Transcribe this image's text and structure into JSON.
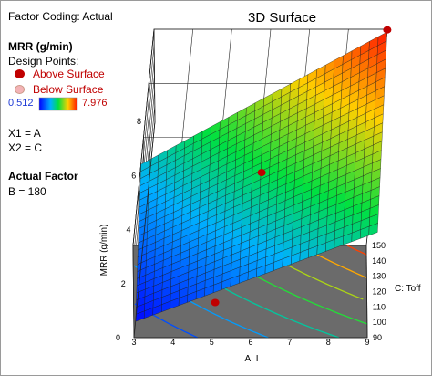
{
  "header": {
    "factor_coding": "Factor Coding: Actual",
    "title": "3D Surface"
  },
  "sidebar": {
    "response_label": "MRR (g/min)",
    "design_points_label": "Design Points:",
    "above_label": "Above Surface",
    "below_label": "Below Surface",
    "scale_min": "0.512",
    "scale_max": "7.976",
    "x1_label": "X1 = A",
    "x2_label": "X2 = C",
    "actual_factor_heading": "Actual Factor",
    "actual_factor_value": "B = 180"
  },
  "colors": {
    "above": "#c00000",
    "below": "#f3b3b6",
    "floor": "#6b6b6b",
    "label_red": "#c00000",
    "label_blue": "#1f3bd6"
  },
  "chart_data": {
    "type": "surface",
    "title": "3D Surface",
    "xlabel": "A: I",
    "ylabel": "C: Toff",
    "zlabel": "MRR (g/min)",
    "x_ticks": [
      "3",
      "4",
      "5",
      "6",
      "7",
      "8",
      "9"
    ],
    "y_ticks": [
      "90",
      "100",
      "110",
      "120",
      "130",
      "140",
      "150"
    ],
    "z_ticks": [
      "0",
      "2",
      "4",
      "6",
      "8"
    ],
    "xlim": [
      3,
      9
    ],
    "ylim": [
      90,
      150
    ],
    "zlim": [
      0,
      8
    ],
    "colorbar": {
      "min": 0.512,
      "max": 7.976
    },
    "surface_corners": [
      {
        "A": 3,
        "C": 90,
        "MRR": 0.6
      },
      {
        "A": 9,
        "C": 90,
        "MRR": 3.9
      },
      {
        "A": 3,
        "C": 150,
        "MRR": 3.0
      },
      {
        "A": 9,
        "C": 150,
        "MRR": 7.9
      }
    ],
    "design_points": [
      {
        "A": 9,
        "C": 150,
        "MRR": 7.976,
        "position": "above"
      },
      {
        "A": 6,
        "C": 120,
        "MRR": 4.4,
        "position": "above"
      },
      {
        "A": 5,
        "C": 90,
        "MRR": 1.3,
        "position": "above"
      }
    ]
  }
}
